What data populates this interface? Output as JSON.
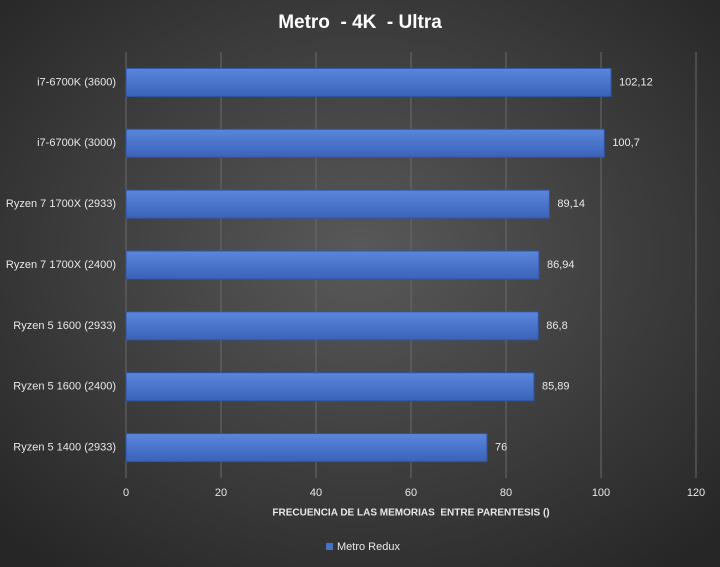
{
  "chart_data": {
    "type": "bar",
    "orientation": "horizontal",
    "title": "Metro  - 4K  - Ultra",
    "x_label": "FRECUENCIA DE LAS MEMORIAS  ENTRE PARENTESIS ()",
    "categories": [
      "i7-6700K (3600)",
      "i7-6700K (3000)",
      "Ryzen 7 1700X (2933)",
      "Ryzen 7 1700X (2400)",
      "Ryzen 5 1600 (2933)",
      "Ryzen 5 1600 (2400)",
      "Ryzen 5 1400 (2933)"
    ],
    "series": [
      {
        "name": "Metro Redux",
        "color": "#4472c4",
        "values": [
          102.12,
          100.7,
          89.14,
          86.94,
          86.8,
          85.89,
          76
        ],
        "value_labels": [
          "102,12",
          "100,7",
          "89,14",
          "86,94",
          "86,8",
          "85,89",
          "76"
        ]
      }
    ],
    "xlim": [
      0,
      120
    ],
    "xticks": [
      0,
      20,
      40,
      60,
      80,
      100,
      120
    ],
    "grid": true,
    "legend": "bottom"
  }
}
